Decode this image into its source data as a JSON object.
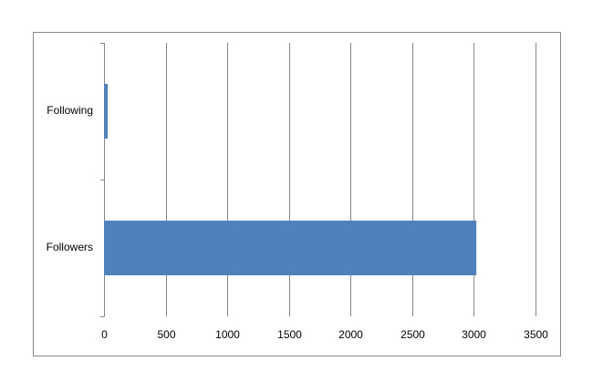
{
  "chart_data": {
    "type": "hbar",
    "categories": [
      "Following",
      "Followers"
    ],
    "values": [
      30,
      3020
    ],
    "color": "#4f81bd",
    "xlim": [
      0,
      3500
    ],
    "xticks": [
      0,
      500,
      1000,
      1500,
      2000,
      2500,
      3000,
      3500
    ],
    "grid": true
  }
}
